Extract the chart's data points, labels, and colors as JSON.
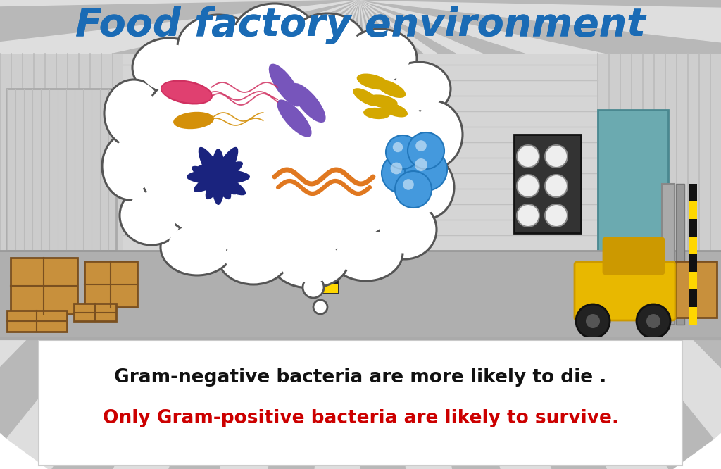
{
  "title": "Food factory environment",
  "title_color": "#1A6BB5",
  "title_fontsize": 40,
  "bg_color": "#FFFFFF",
  "text_line1": "Gram-negative bacteria are more likely to die .",
  "text_line2": "Only Gram-positive bacteria are likely to survive.",
  "text_color1": "#111111",
  "text_color2": "#CC0000",
  "text_fontsize": 19,
  "bacteria": {
    "red_rod": "#D03060",
    "yellow_rod": "#D4900A",
    "purple_rod": "#7755BB",
    "dark_blue": "#1A237E",
    "orange_spiral": "#E07820",
    "blue_coccus": "#4499DD",
    "yellow_curved": "#D4A800"
  },
  "factory": {
    "ceiling_light": "#DEDEDE",
    "ceiling_dark": "#B8B8B8",
    "wall_light": "#CECECE",
    "wall_stripe": "#BBBBBB",
    "back_wall": "#D5D5D5",
    "back_stripe": "#C0C0C0",
    "floor": "#AFAFAF",
    "floor_line": "#999999",
    "crate": "#C8903C",
    "crate_edge": "#7A5020",
    "forklift_yellow": "#E8B800",
    "forklift_dark": "#CC9900",
    "wheel": "#222222",
    "lamp_bg": "#444444",
    "lamp": "#EEEEEE"
  }
}
